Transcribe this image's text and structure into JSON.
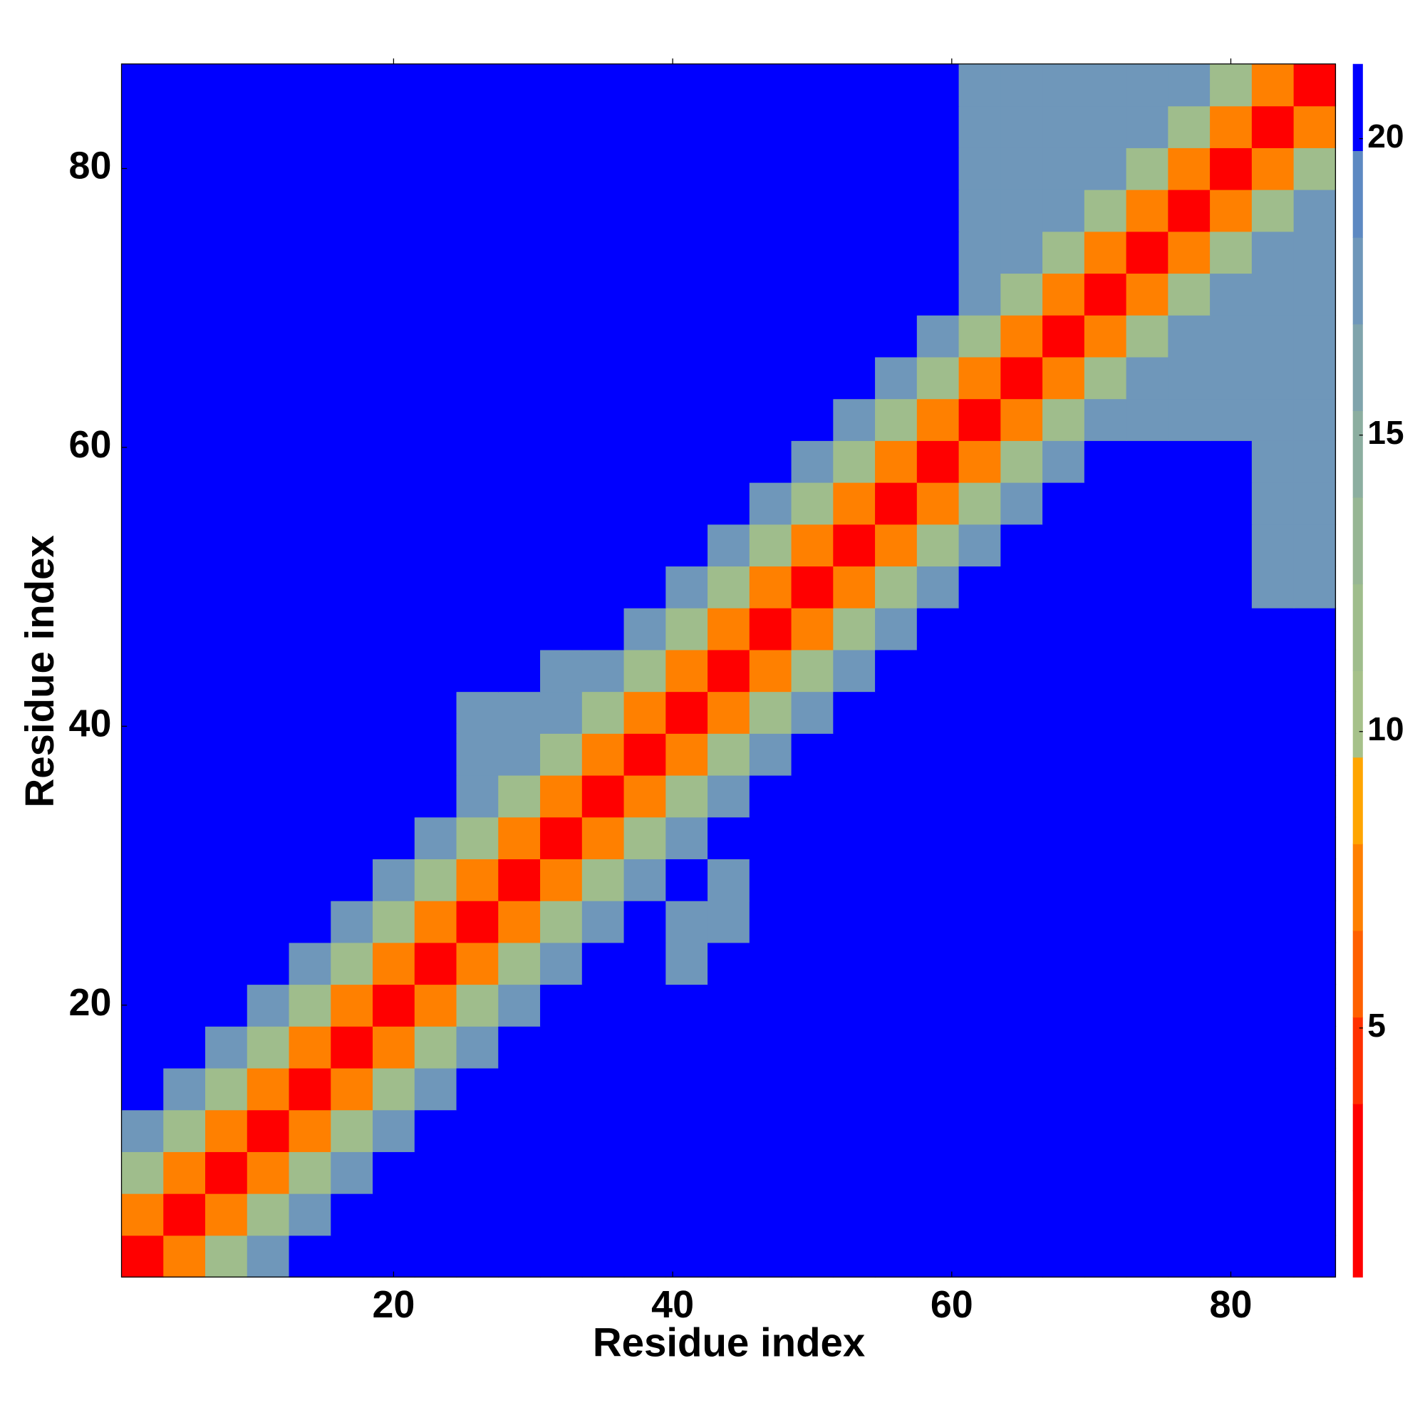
{
  "chart_data": {
    "type": "heatmap",
    "xlabel": "Residue index",
    "ylabel": "Residue index",
    "x": [
      2,
      5,
      8,
      11,
      14,
      17,
      20,
      23,
      26,
      29,
      32,
      35,
      38,
      41,
      44,
      47,
      50,
      53,
      56,
      59,
      62,
      65,
      68,
      71,
      74,
      77,
      80,
      83,
      86
    ],
    "y": [
      2,
      5,
      8,
      11,
      14,
      17,
      20,
      23,
      26,
      29,
      32,
      35,
      38,
      41,
      44,
      47,
      50,
      53,
      56,
      59,
      62,
      65,
      68,
      71,
      74,
      77,
      80,
      83,
      86
    ],
    "xlim": [
      0.5,
      87.5
    ],
    "ylim": [
      0.5,
      87.5
    ],
    "xticks": [
      20,
      40,
      60,
      80
    ],
    "yticks": [
      20,
      40,
      60,
      80
    ],
    "zlim": [
      0.8,
      21.26
    ],
    "zticks": [
      5,
      10,
      15,
      20
    ],
    "colors": [
      "#ff0000",
      "#ff0000",
      "#ff3000",
      "#ff6000",
      "#ff8000",
      "#ffa500",
      "#a6c18a",
      "#9fbd8c",
      "#97b694",
      "#8caea0",
      "#80a4ac",
      "#6f97ba",
      "#5d89c2",
      "#0000ff"
    ],
    "values": [
      [
        3,
        8,
        12,
        17,
        22,
        22,
        22,
        22,
        22,
        22,
        22,
        22,
        22,
        22,
        22,
        22,
        22,
        22,
        22,
        22,
        22,
        22,
        22,
        22,
        22,
        22,
        22,
        22,
        22
      ],
      [
        8,
        3,
        8,
        12,
        17,
        22,
        22,
        22,
        22,
        22,
        22,
        22,
        22,
        22,
        22,
        22,
        22,
        22,
        22,
        22,
        22,
        22,
        22,
        22,
        22,
        22,
        22,
        22,
        22
      ],
      [
        12,
        8,
        3,
        8,
        12,
        17,
        22,
        22,
        22,
        22,
        22,
        22,
        22,
        22,
        22,
        22,
        22,
        22,
        22,
        22,
        22,
        22,
        22,
        22,
        22,
        22,
        22,
        22,
        22
      ],
      [
        17,
        12,
        8,
        3,
        8,
        12,
        17,
        22,
        22,
        22,
        22,
        22,
        22,
        22,
        22,
        22,
        22,
        22,
        22,
        22,
        22,
        22,
        22,
        22,
        22,
        22,
        22,
        22,
        22
      ],
      [
        22,
        17,
        12,
        8,
        3,
        8,
        12,
        17,
        22,
        22,
        22,
        22,
        22,
        22,
        22,
        22,
        22,
        22,
        22,
        22,
        22,
        22,
        22,
        22,
        22,
        22,
        22,
        22,
        22
      ],
      [
        22,
        22,
        17,
        12,
        8,
        3,
        8,
        12,
        17,
        22,
        22,
        22,
        22,
        22,
        22,
        22,
        22,
        22,
        22,
        22,
        22,
        22,
        22,
        22,
        22,
        22,
        22,
        22,
        22
      ],
      [
        22,
        22,
        22,
        17,
        12,
        8,
        3,
        8,
        12,
        17,
        22,
        22,
        22,
        22,
        22,
        22,
        22,
        22,
        22,
        22,
        22,
        22,
        22,
        22,
        22,
        22,
        22,
        22,
        22
      ],
      [
        22,
        22,
        22,
        22,
        17,
        12,
        8,
        3,
        8,
        12,
        17,
        22,
        22,
        18,
        22,
        22,
        22,
        22,
        22,
        22,
        22,
        22,
        22,
        22,
        22,
        22,
        22,
        22,
        22
      ],
      [
        22,
        22,
        22,
        22,
        22,
        17,
        12,
        8,
        3,
        8,
        12,
        17,
        22,
        18,
        18,
        22,
        22,
        22,
        22,
        22,
        22,
        22,
        22,
        22,
        22,
        22,
        22,
        22,
        22
      ],
      [
        22,
        22,
        22,
        22,
        22,
        22,
        17,
        12,
        8,
        3,
        8,
        12,
        17,
        22,
        18,
        22,
        22,
        22,
        22,
        22,
        22,
        22,
        22,
        22,
        22,
        22,
        22,
        22,
        22
      ],
      [
        22,
        22,
        22,
        22,
        22,
        22,
        22,
        17,
        12,
        8,
        3,
        8,
        12,
        17,
        22,
        22,
        22,
        22,
        22,
        22,
        22,
        22,
        22,
        22,
        22,
        22,
        22,
        22,
        22
      ],
      [
        22,
        22,
        22,
        22,
        22,
        22,
        22,
        22,
        17,
        12,
        8,
        3,
        8,
        12,
        17,
        22,
        22,
        22,
        22,
        22,
        22,
        22,
        22,
        22,
        22,
        22,
        22,
        22,
        22
      ],
      [
        22,
        22,
        22,
        22,
        22,
        22,
        22,
        22,
        18,
        17,
        12,
        8,
        3,
        8,
        12,
        17,
        22,
        22,
        22,
        22,
        22,
        22,
        22,
        22,
        22,
        22,
        22,
        22,
        22
      ],
      [
        22,
        22,
        22,
        22,
        22,
        22,
        22,
        22,
        18,
        18,
        17,
        12,
        8,
        3,
        8,
        12,
        17,
        22,
        22,
        22,
        22,
        22,
        22,
        22,
        22,
        22,
        22,
        22,
        22
      ],
      [
        22,
        22,
        22,
        22,
        22,
        22,
        22,
        22,
        22,
        22,
        18,
        17,
        12,
        8,
        3,
        8,
        12,
        17,
        22,
        22,
        22,
        22,
        22,
        22,
        22,
        22,
        22,
        22,
        22
      ],
      [
        22,
        22,
        22,
        22,
        22,
        22,
        22,
        22,
        22,
        22,
        22,
        22,
        17,
        12,
        8,
        3,
        8,
        12,
        17,
        22,
        22,
        22,
        22,
        22,
        22,
        22,
        22,
        22,
        22
      ],
      [
        22,
        22,
        22,
        22,
        22,
        22,
        22,
        22,
        22,
        22,
        22,
        22,
        22,
        17,
        12,
        8,
        3,
        8,
        12,
        17,
        22,
        22,
        22,
        22,
        22,
        22,
        22,
        18,
        18
      ],
      [
        22,
        22,
        22,
        22,
        22,
        22,
        22,
        22,
        22,
        22,
        22,
        22,
        22,
        22,
        17,
        12,
        8,
        3,
        8,
        12,
        17,
        22,
        22,
        22,
        22,
        22,
        22,
        18,
        18
      ],
      [
        22,
        22,
        22,
        22,
        22,
        22,
        22,
        22,
        22,
        22,
        22,
        22,
        22,
        22,
        22,
        17,
        12,
        8,
        3,
        8,
        12,
        17,
        22,
        22,
        22,
        22,
        22,
        18,
        18
      ],
      [
        22,
        22,
        22,
        22,
        22,
        22,
        22,
        22,
        22,
        22,
        22,
        22,
        22,
        22,
        22,
        22,
        17,
        12,
        8,
        3,
        8,
        12,
        17,
        22,
        22,
        22,
        22,
        18,
        18
      ],
      [
        22,
        22,
        22,
        22,
        22,
        22,
        22,
        22,
        22,
        22,
        22,
        22,
        22,
        22,
        22,
        22,
        22,
        17,
        12,
        8,
        3,
        8,
        12,
        17,
        18,
        18,
        18,
        18,
        18
      ],
      [
        22,
        22,
        22,
        22,
        22,
        22,
        22,
        22,
        22,
        22,
        22,
        22,
        22,
        22,
        22,
        22,
        22,
        22,
        17,
        12,
        8,
        3,
        8,
        12,
        17,
        18,
        18,
        18,
        18
      ],
      [
        22,
        22,
        22,
        22,
        22,
        22,
        22,
        22,
        22,
        22,
        22,
        22,
        22,
        22,
        22,
        22,
        22,
        22,
        22,
        17,
        12,
        8,
        3,
        8,
        12,
        17,
        18,
        18,
        18
      ],
      [
        22,
        22,
        22,
        22,
        22,
        22,
        22,
        22,
        22,
        22,
        22,
        22,
        22,
        22,
        22,
        22,
        22,
        22,
        22,
        22,
        17,
        12,
        8,
        3,
        8,
        12,
        17,
        18,
        18
      ],
      [
        22,
        22,
        22,
        22,
        22,
        22,
        22,
        22,
        22,
        22,
        22,
        22,
        22,
        22,
        22,
        22,
        22,
        22,
        22,
        22,
        18,
        17,
        12,
        8,
        3,
        8,
        12,
        17,
        18
      ],
      [
        22,
        22,
        22,
        22,
        22,
        22,
        22,
        22,
        22,
        22,
        22,
        22,
        22,
        22,
        22,
        22,
        22,
        22,
        22,
        22,
        18,
        18,
        17,
        12,
        8,
        3,
        8,
        12,
        17
      ],
      [
        22,
        22,
        22,
        22,
        22,
        22,
        22,
        22,
        22,
        22,
        22,
        22,
        22,
        22,
        22,
        22,
        22,
        22,
        22,
        22,
        18,
        18,
        18,
        17,
        12,
        8,
        3,
        8,
        12
      ],
      [
        22,
        22,
        22,
        22,
        22,
        22,
        22,
        22,
        22,
        22,
        22,
        22,
        22,
        22,
        22,
        22,
        22,
        22,
        22,
        22,
        18,
        18,
        18,
        18,
        17,
        12,
        8,
        3,
        8
      ],
      [
        22,
        22,
        22,
        22,
        22,
        22,
        22,
        22,
        22,
        22,
        22,
        22,
        22,
        22,
        22,
        22,
        22,
        22,
        22,
        22,
        18,
        18,
        18,
        18,
        18,
        17,
        12,
        8,
        3
      ]
    ]
  }
}
